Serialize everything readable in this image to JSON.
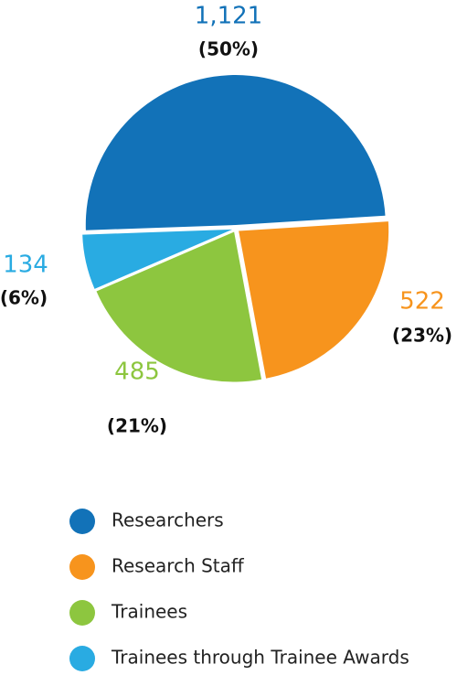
{
  "chart_data": {
    "type": "pie",
    "categories": [
      "Researchers",
      "Research Staff",
      "Trainees",
      "Trainees through Trainee Awards"
    ],
    "values": [
      1121,
      522,
      485,
      134
    ],
    "value_labels": [
      "1,121",
      "522",
      "485",
      "134"
    ],
    "percent_labels": [
      "(50%)",
      "(23%)",
      "(21%)",
      "(6%)"
    ],
    "colors": [
      "#1272b8",
      "#f7941d",
      "#8dc63f",
      "#29abe2"
    ]
  }
}
